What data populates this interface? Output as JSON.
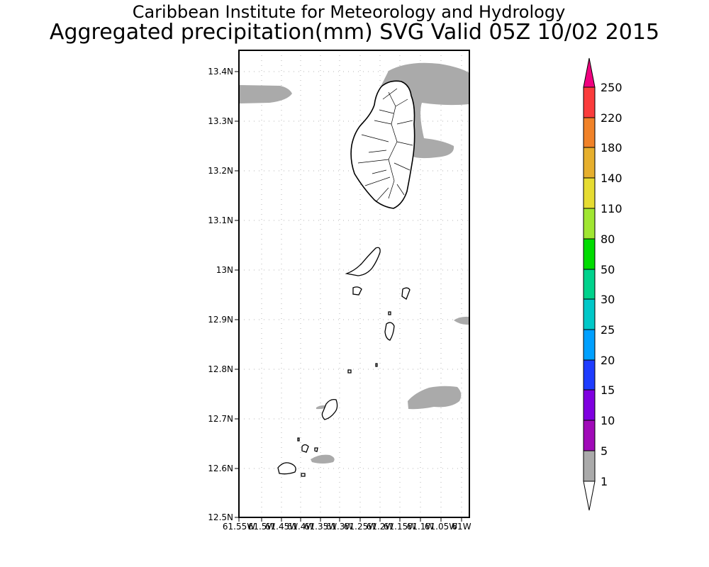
{
  "header": {
    "title": "Caribbean Institute for Meteorology and Hydrology",
    "subtitle": "Aggregated precipitation(mm) SVG Valid 05Z 10/02 2015"
  },
  "map": {
    "y_ticks": [
      "13.4N",
      "13.3N",
      "13.2N",
      "13.1N",
      "13N",
      "12.9N",
      "12.8N",
      "12.7N",
      "12.6N",
      "12.5N"
    ],
    "x_ticks": [
      "61.55W",
      "61.5W",
      "61.45W",
      "61.4W",
      "61.35W",
      "61.3W",
      "61.25W",
      "61.2W",
      "61.15W",
      "61.1W",
      "61.05W",
      "61W"
    ],
    "lon_range": [
      -61.55,
      -61.0
    ],
    "lat_range": [
      12.5,
      13.45
    ],
    "gridlines": true,
    "land_color": "#ffffff",
    "precip_color": "#aaaaaa"
  },
  "colorbar": {
    "labels": [
      "1",
      "5",
      "10",
      "15",
      "20",
      "25",
      "30",
      "50",
      "80",
      "110",
      "140",
      "180",
      "220",
      "250"
    ],
    "colors": [
      "#aaaaaa",
      "#a00ab8",
      "#7f00e0",
      "#1e3cff",
      "#00a0ff",
      "#00c8c8",
      "#00d28c",
      "#00dc00",
      "#a0e632",
      "#e6dc32",
      "#e6af2d",
      "#f08228",
      "#fa3c3c",
      "#f0007f"
    ]
  }
}
